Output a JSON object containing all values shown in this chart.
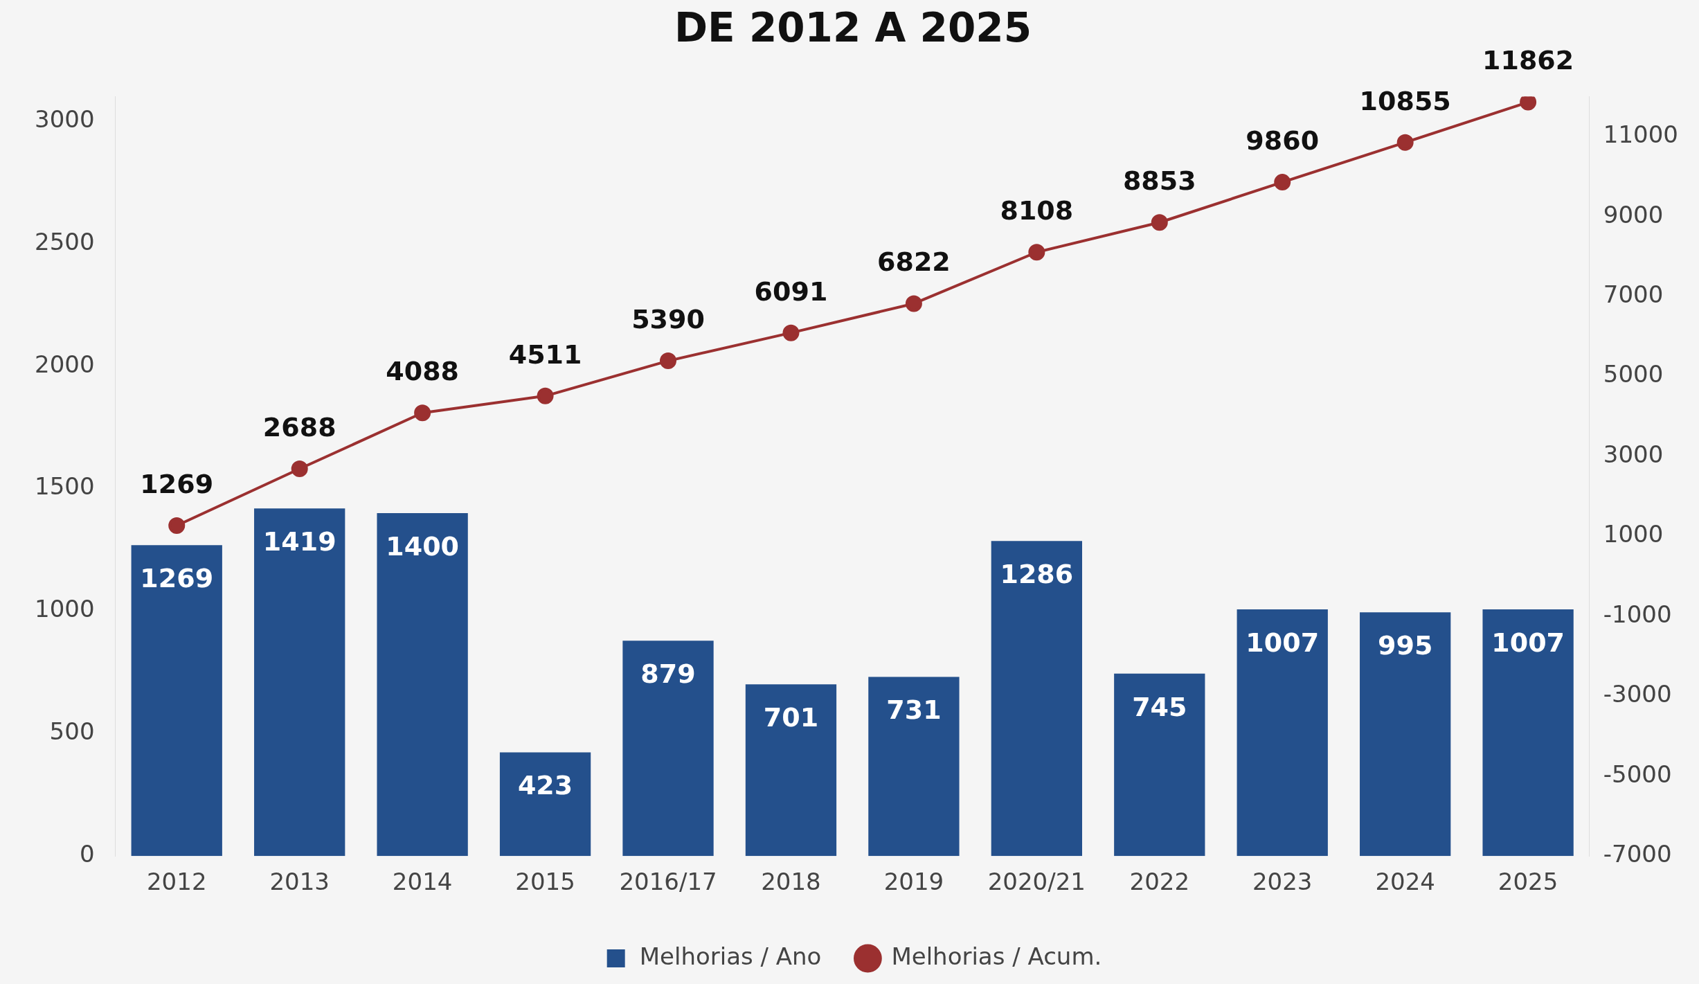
{
  "chart_data": {
    "type": "bar",
    "title": "DE 2012 A 2025",
    "categories": [
      "2012",
      "2013",
      "2014",
      "2015",
      "2016/17",
      "2018",
      "2019",
      "2020/21",
      "2022",
      "2023",
      "2024",
      "2025"
    ],
    "series": [
      {
        "name": "Melhorias / Ano",
        "color": "#24508c",
        "values": [
          1269,
          1419,
          1400,
          423,
          879,
          701,
          731,
          1286,
          745,
          1007,
          995,
          1007
        ]
      },
      {
        "name": "Melhorias / Acum.",
        "type": "line",
        "axis": "y2",
        "color": "#9b3030",
        "values": [
          1269,
          2688,
          4088,
          4511,
          5390,
          6091,
          6822,
          8108,
          8853,
          9860,
          10855,
          11862
        ]
      }
    ],
    "ylim": [
      0,
      3100
    ],
    "yticks": [
      0,
      500,
      1000,
      1500,
      2000,
      2500,
      3000
    ],
    "y2lim": [
      -7000,
      12000
    ],
    "y2ticks": [
      -7000,
      -5000,
      -3000,
      -1000,
      1000,
      3000,
      5000,
      7000,
      9000,
      11000
    ],
    "data_labels": true,
    "legend": "bottom",
    "marker": "circle",
    "grid": false
  }
}
